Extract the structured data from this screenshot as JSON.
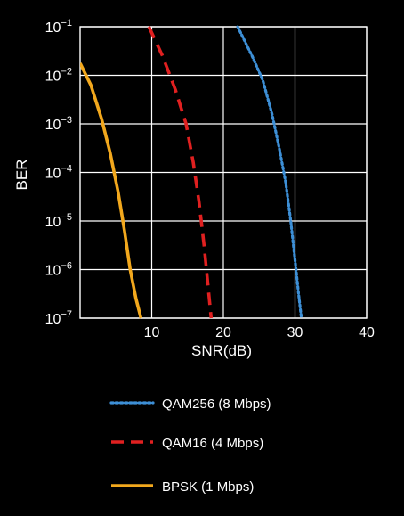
{
  "chart_data": {
    "type": "line",
    "xlabel": "SNR(dB)",
    "ylabel": "BER",
    "xlim": [
      0,
      40
    ],
    "ylim_exponent": [
      -7,
      -1
    ],
    "y_scale": "log",
    "x_ticks": [
      10,
      20,
      30,
      40
    ],
    "y_ticks": [
      {
        "base": "10",
        "exp": "−1",
        "value": -1
      },
      {
        "base": "10",
        "exp": "−2",
        "value": -2
      },
      {
        "base": "10",
        "exp": "−3",
        "value": -3
      },
      {
        "base": "10",
        "exp": "−4",
        "value": -4
      },
      {
        "base": "10",
        "exp": "−5",
        "value": -5
      },
      {
        "base": "10",
        "exp": "−6",
        "value": -6
      },
      {
        "base": "10",
        "exp": "−7",
        "value": -7
      }
    ],
    "grid": true,
    "legend_position": "bottom",
    "series": [
      {
        "name": "QAM256 (8 Mbps)",
        "color": "#3d8fd6",
        "style": "dotted",
        "points": [
          [
            22.0,
            -1.0
          ],
          [
            24.0,
            -1.6
          ],
          [
            25.5,
            -2.1
          ],
          [
            26.8,
            -2.8
          ],
          [
            27.8,
            -3.5
          ],
          [
            28.7,
            -4.2
          ],
          [
            29.4,
            -5.0
          ],
          [
            30.0,
            -5.8
          ],
          [
            30.5,
            -6.5
          ],
          [
            30.9,
            -7.0
          ]
        ]
      },
      {
        "name": "QAM16 (4 Mbps)",
        "color": "#e02020",
        "style": "dashed",
        "points": [
          [
            9.6,
            -1.0
          ],
          [
            11.5,
            -1.6
          ],
          [
            13.3,
            -2.3
          ],
          [
            14.8,
            -3.0
          ],
          [
            15.8,
            -3.8
          ],
          [
            16.6,
            -4.6
          ],
          [
            17.3,
            -5.5
          ],
          [
            17.9,
            -6.4
          ],
          [
            18.3,
            -7.0
          ]
        ]
      },
      {
        "name": "BPSK (1 Mbps)",
        "color": "#f2a81d",
        "style": "solid",
        "points": [
          [
            0.0,
            -1.75
          ],
          [
            1.5,
            -2.2
          ],
          [
            3.0,
            -2.9
          ],
          [
            4.2,
            -3.6
          ],
          [
            5.3,
            -4.4
          ],
          [
            6.2,
            -5.2
          ],
          [
            7.0,
            -6.0
          ],
          [
            7.8,
            -6.6
          ],
          [
            8.5,
            -7.0
          ]
        ]
      }
    ]
  }
}
